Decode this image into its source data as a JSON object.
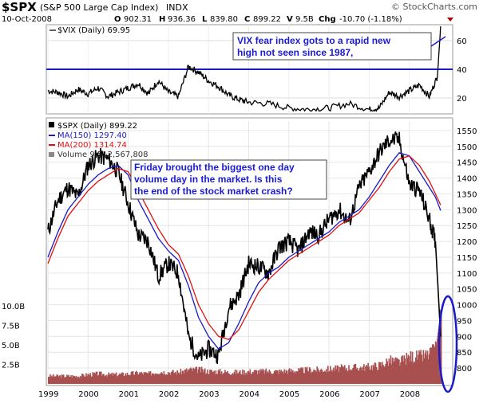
{
  "header": {
    "symbol": "$SPX",
    "name": "(S&P 500 Large Cap Index)",
    "exchange": "INDX",
    "date": "10-Oct-2008",
    "quote": {
      "open_label": "O",
      "open": "902.31",
      "high_label": "H",
      "high": "936.36",
      "low_label": "L",
      "low": "839.80",
      "close_label": "C",
      "close": "899.22",
      "volume_label": "V",
      "volume": "9.5B",
      "change_label": "Chg",
      "change": "-10.70 (-1.18%)"
    },
    "watermark": "© StockCharts.com"
  },
  "colors": {
    "price": "#000000",
    "ma150": "#1a1ac8",
    "ma200": "#e01010",
    "volume": "#a85050",
    "annotation": "#1b1bd6",
    "vix_line": "#1a1ac8"
  },
  "chart_data": [
    {
      "type": "line",
      "panel": "upper",
      "legend": "$VIX (Daily) 69.95",
      "series": [
        {
          "name": "$VIX (Daily)",
          "x": [
            1999.0,
            1999.25,
            1999.5,
            1999.75,
            2000.0,
            2000.25,
            2000.5,
            2000.75,
            2001.0,
            2001.25,
            2001.5,
            2001.75,
            2002.0,
            2002.25,
            2002.5,
            2002.75,
            2003.0,
            2003.25,
            2003.5,
            2003.75,
            2004.0,
            2004.5,
            2005.0,
            2005.5,
            2006.0,
            2006.5,
            2007.0,
            2007.25,
            2007.5,
            2007.75,
            2008.0,
            2008.25,
            2008.5,
            2008.7,
            2008.78
          ],
          "values": [
            25,
            24,
            21,
            26,
            23,
            27,
            21,
            24,
            27,
            30,
            23,
            32,
            24,
            21,
            42,
            38,
            32,
            28,
            22,
            19,
            17,
            16,
            13,
            12,
            13,
            16,
            12,
            13,
            24,
            21,
            25,
            29,
            21,
            35,
            69.95
          ]
        }
      ],
      "reference_line": 40,
      "ylim": [
        10,
        70
      ],
      "yticks": [
        20,
        40,
        60
      ],
      "annotation": "VIX fear index gots to a rapid new high not seen since 1987,"
    },
    {
      "type": "line",
      "panel": "lower",
      "legend": [
        "$SPX (Daily) 899.22",
        "MA(150) 1297.40",
        "MA(200) 1314.74",
        "Volume 9,512,567,808"
      ],
      "x": [
        1999.0,
        1999.25,
        1999.5,
        1999.75,
        2000.0,
        2000.25,
        2000.5,
        2000.75,
        2001.0,
        2001.25,
        2001.5,
        2001.75,
        2002.0,
        2002.25,
        2002.5,
        2002.75,
        2003.0,
        2003.25,
        2003.5,
        2003.75,
        2004.0,
        2004.25,
        2004.5,
        2004.75,
        2005.0,
        2005.25,
        2005.5,
        2005.75,
        2006.0,
        2006.25,
        2006.5,
        2006.75,
        2007.0,
        2007.25,
        2007.5,
        2007.75,
        2008.0,
        2008.25,
        2008.5,
        2008.65,
        2008.78
      ],
      "series": [
        {
          "name": "$SPX (Daily)",
          "values": [
            1230,
            1330,
            1370,
            1340,
            1440,
            1470,
            1460,
            1420,
            1320,
            1220,
            1200,
            1090,
            1130,
            1100,
            900,
            830,
            860,
            840,
            990,
            1030,
            1130,
            1120,
            1100,
            1180,
            1200,
            1170,
            1230,
            1220,
            1270,
            1300,
            1260,
            1370,
            1420,
            1480,
            1520,
            1520,
            1380,
            1360,
            1270,
            1200,
            899.22
          ]
        },
        {
          "name": "MA(150)",
          "values": [
            1150,
            1230,
            1300,
            1340,
            1380,
            1410,
            1430,
            1440,
            1410,
            1330,
            1270,
            1210,
            1170,
            1140,
            1060,
            960,
            900,
            860,
            880,
            940,
            1010,
            1070,
            1100,
            1120,
            1150,
            1170,
            1190,
            1210,
            1230,
            1260,
            1280,
            1300,
            1340,
            1390,
            1440,
            1480,
            1470,
            1420,
            1370,
            1340,
            1297.4
          ]
        },
        {
          "name": "MA(200)",
          "values": [
            1130,
            1210,
            1280,
            1320,
            1360,
            1390,
            1410,
            1430,
            1420,
            1360,
            1300,
            1240,
            1190,
            1160,
            1090,
            1000,
            940,
            900,
            890,
            920,
            980,
            1040,
            1080,
            1110,
            1140,
            1160,
            1180,
            1200,
            1220,
            1250,
            1270,
            1290,
            1330,
            1370,
            1420,
            1460,
            1470,
            1440,
            1390,
            1350,
            1314.74
          ]
        }
      ],
      "volume": {
        "name": "Volume",
        "values_billion": [
          1.0,
          1.0,
          1.0,
          1.0,
          1.2,
          1.3,
          1.2,
          1.2,
          1.3,
          1.4,
          1.3,
          1.6,
          1.5,
          1.5,
          1.8,
          1.8,
          1.6,
          1.6,
          1.5,
          1.5,
          1.6,
          1.6,
          1.6,
          1.6,
          1.7,
          1.7,
          1.8,
          1.8,
          1.9,
          2.0,
          2.1,
          2.1,
          2.2,
          2.4,
          3.0,
          2.8,
          3.5,
          3.5,
          3.8,
          4.5,
          9.5
        ]
      },
      "ylim": [
        750,
        1580
      ],
      "yticks": [
        800,
        850,
        900,
        950,
        1000,
        1050,
        1100,
        1150,
        1200,
        1250,
        1300,
        1350,
        1400,
        1450,
        1500,
        1550
      ],
      "volume_ticks": [
        "2.5B",
        "5.0B",
        "7.5B",
        "10.0B"
      ],
      "xticks": [
        "1999",
        "2000",
        "2001",
        "2002",
        "2003",
        "2004",
        "2005",
        "2006",
        "2007",
        "2008"
      ],
      "annotation": "Friday brought the biggest one day volume day in the market. Is this the end of the stock market crash?"
    }
  ]
}
